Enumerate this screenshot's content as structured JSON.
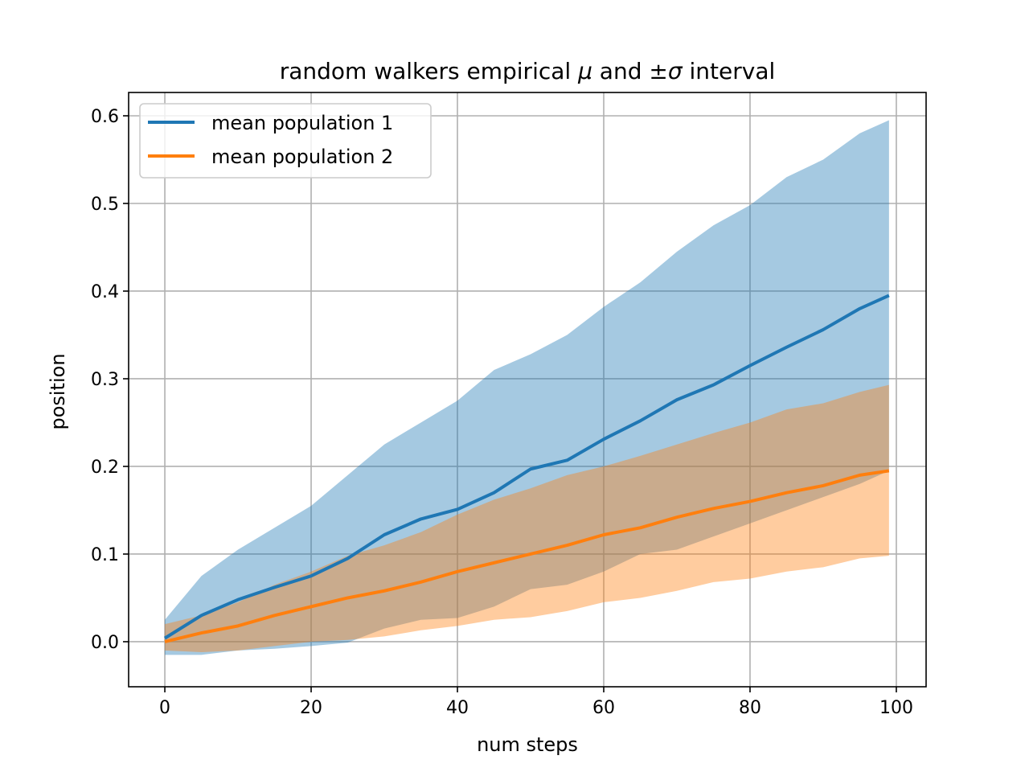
{
  "chart_data": {
    "type": "line",
    "title": "random walkers empirical μ and ±σ interval",
    "xlabel": "num steps",
    "ylabel": "position",
    "xlim": [
      -4.95,
      104.07
    ],
    "ylim": [
      -0.0514,
      0.6266
    ],
    "xticks": [
      0,
      20,
      40,
      60,
      80,
      100
    ],
    "xtick_labels": [
      "0",
      "20",
      "40",
      "60",
      "80",
      "100"
    ],
    "yticks": [
      0.0,
      0.1,
      0.2,
      0.3,
      0.4,
      0.5,
      0.6
    ],
    "ytick_labels": [
      "0.0",
      "0.1",
      "0.2",
      "0.3",
      "0.4",
      "0.5",
      "0.6"
    ],
    "grid": true,
    "legend_position": "top-left",
    "x": [
      0,
      5,
      10,
      15,
      20,
      25,
      30,
      35,
      40,
      45,
      50,
      55,
      60,
      65,
      70,
      75,
      80,
      85,
      90,
      95,
      99
    ],
    "series": [
      {
        "name": "mean population 1",
        "color": "#1f77b4",
        "values": [
          0.004,
          0.03,
          0.048,
          0.062,
          0.075,
          0.095,
          0.122,
          0.14,
          0.151,
          0.17,
          0.197,
          0.207,
          0.231,
          0.252,
          0.276,
          0.293,
          0.315,
          0.336,
          0.356,
          0.38,
          0.395
        ],
        "band_upper": [
          0.025,
          0.075,
          0.105,
          0.13,
          0.155,
          0.19,
          0.225,
          0.25,
          0.275,
          0.31,
          0.328,
          0.35,
          0.382,
          0.41,
          0.445,
          0.475,
          0.498,
          0.53,
          0.55,
          0.58,
          0.595
        ],
        "band_lower": [
          -0.015,
          -0.015,
          -0.01,
          -0.008,
          -0.005,
          -0.001,
          0.015,
          0.025,
          0.027,
          0.04,
          0.06,
          0.065,
          0.08,
          0.1,
          0.105,
          0.12,
          0.135,
          0.15,
          0.165,
          0.18,
          0.195
        ]
      },
      {
        "name": "mean population 2",
        "color": "#ff7f0e",
        "values": [
          0.0,
          0.01,
          0.018,
          0.03,
          0.04,
          0.05,
          0.058,
          0.068,
          0.08,
          0.09,
          0.1,
          0.11,
          0.122,
          0.13,
          0.142,
          0.152,
          0.16,
          0.17,
          0.178,
          0.19,
          0.195
        ],
        "band_upper": [
          0.02,
          0.03,
          0.045,
          0.065,
          0.08,
          0.098,
          0.11,
          0.125,
          0.145,
          0.162,
          0.175,
          0.19,
          0.2,
          0.212,
          0.225,
          0.238,
          0.25,
          0.265,
          0.272,
          0.285,
          0.293
        ],
        "band_lower": [
          -0.01,
          -0.012,
          -0.01,
          -0.005,
          0.0,
          0.002,
          0.006,
          0.013,
          0.018,
          0.025,
          0.028,
          0.035,
          0.045,
          0.05,
          0.058,
          0.068,
          0.072,
          0.08,
          0.085,
          0.095,
          0.098
        ]
      }
    ]
  }
}
